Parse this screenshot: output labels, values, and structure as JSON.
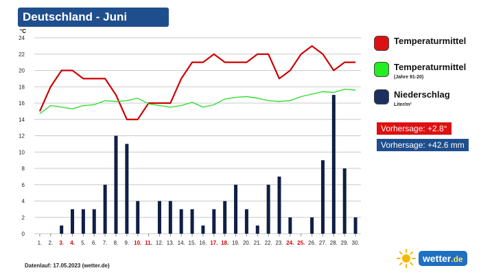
{
  "header": {
    "title": "Deutschland - Juni"
  },
  "colors": {
    "temp": "#cc0000",
    "normal": "#33dd33",
    "precip": "#0f1f45",
    "weekend": "#cc0000",
    "grid": "#c8c8c8",
    "title_bg": "#1f4e8c"
  },
  "legend": {
    "items": [
      {
        "label": "Temperaturmittel",
        "sub": "",
        "color": "#dd1111"
      },
      {
        "label": "Temperaturmittel",
        "sub": "(Jahre 91-20)",
        "color": "#22ee22"
      },
      {
        "label": "Niederschlag",
        "sub": "Liter/m²",
        "color": "#1c2f5e"
      }
    ]
  },
  "forecast": {
    "temp": "Vorhersage: +2.8°",
    "temp_color": "#dd1111",
    "precip": "Vorhersage: +42.6 mm",
    "precip_color": "#1f4e8c"
  },
  "footer": {
    "text": "Datenlauf: 17.05.2023 (wetter.de)"
  },
  "logo": {
    "brand": "wetter",
    "tld": ".de",
    "icon": "sun-icon"
  },
  "chart_data": {
    "type": "bar",
    "ylabel": "°C",
    "ylim": [
      0,
      24
    ],
    "yticks": [
      0,
      2,
      4,
      6,
      8,
      10,
      12,
      14,
      16,
      18,
      20,
      22,
      24
    ],
    "categories": [
      "1.",
      "2.",
      "3.",
      "4.",
      "5.",
      "6.",
      "7.",
      "8.",
      "9.",
      "10.",
      "11.",
      "12.",
      "13.",
      "14.",
      "15.",
      "16.",
      "17.",
      "18.",
      "19.",
      "20.",
      "21.",
      "22.",
      "23.",
      "24.",
      "25.",
      "26.",
      "27.",
      "28.",
      "29.",
      "30."
    ],
    "weekend_days": [
      3,
      4,
      10,
      11,
      17,
      18,
      24,
      25
    ],
    "grid": true,
    "series": [
      {
        "name": "Temperaturmittel",
        "type": "line",
        "values": [
          15,
          18,
          20,
          20,
          19,
          19,
          19,
          17,
          14,
          14,
          16,
          16,
          16,
          19,
          21,
          21,
          22,
          21,
          21,
          21,
          22,
          22,
          19,
          20,
          22,
          23,
          22,
          20,
          21,
          21
        ]
      },
      {
        "name": "Temperaturmittel (Jahre 91-20)",
        "type": "line",
        "values": [
          14.7,
          15.7,
          15.5,
          15.3,
          15.7,
          15.8,
          16.3,
          16.2,
          16.3,
          16.6,
          15.9,
          15.7,
          15.5,
          15.7,
          16.1,
          15.5,
          15.8,
          16.5,
          16.7,
          16.8,
          16.6,
          16.3,
          16.2,
          16.3,
          16.8,
          17.1,
          17.4,
          17.3,
          17.7,
          17.6
        ]
      },
      {
        "name": "Niederschlag",
        "type": "bar",
        "values": [
          0,
          0,
          1,
          3,
          3,
          3,
          6,
          12,
          11,
          4,
          0,
          4,
          4,
          3,
          3,
          1,
          3,
          4,
          6,
          3,
          1,
          6,
          7,
          2,
          0,
          2,
          9,
          17,
          8,
          2
        ]
      }
    ]
  }
}
